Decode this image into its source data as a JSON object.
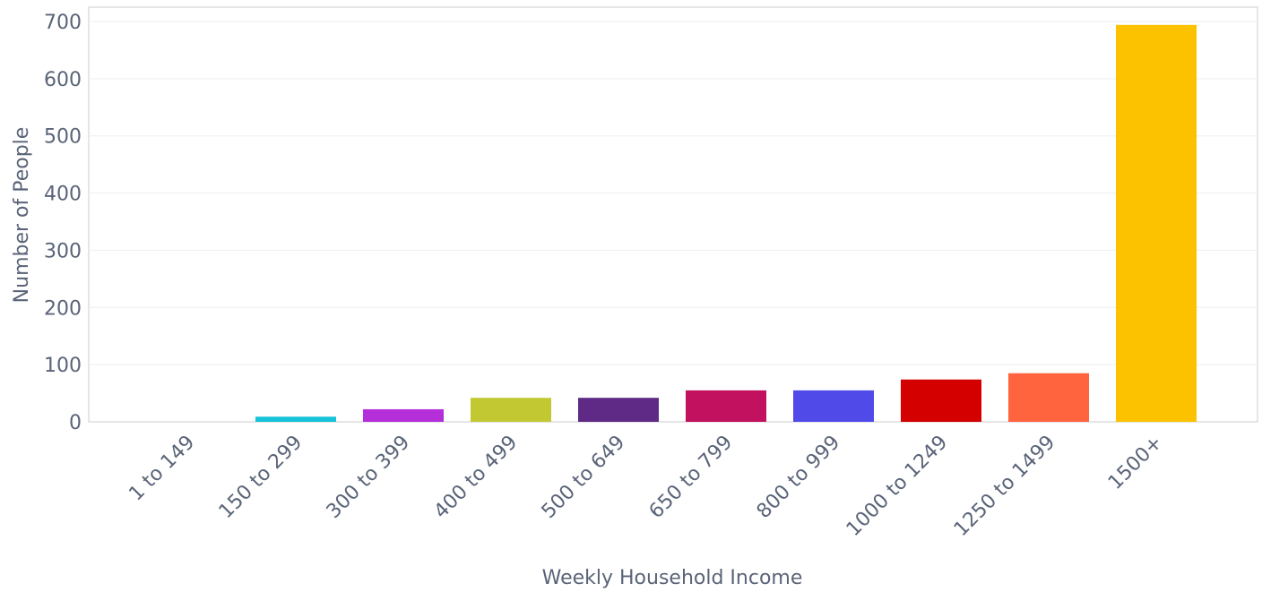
{
  "chart_data": {
    "type": "bar",
    "xlabel": "Weekly Household Income",
    "ylabel": "Number of People",
    "categories": [
      "1 to 149",
      "150 to 299",
      "300 to 399",
      "400 to 499",
      "500 to 649",
      "650 to 799",
      "800 to 999",
      "1000 to 1249",
      "1250 to 1499",
      "1500+"
    ],
    "values": [
      0,
      9,
      22,
      42,
      42,
      55,
      55,
      74,
      85,
      694
    ],
    "colors": [
      "#3366cc",
      "#17c3d8",
      "#b42ed9",
      "#c2c832",
      "#5e2a86",
      "#c2125f",
      "#4f4ae8",
      "#d40000",
      "#ff643f",
      "#fcc200"
    ],
    "ylim": [
      0,
      700
    ],
    "yticks": [
      0,
      100,
      200,
      300,
      400,
      500,
      600,
      700
    ],
    "grid": true
  }
}
